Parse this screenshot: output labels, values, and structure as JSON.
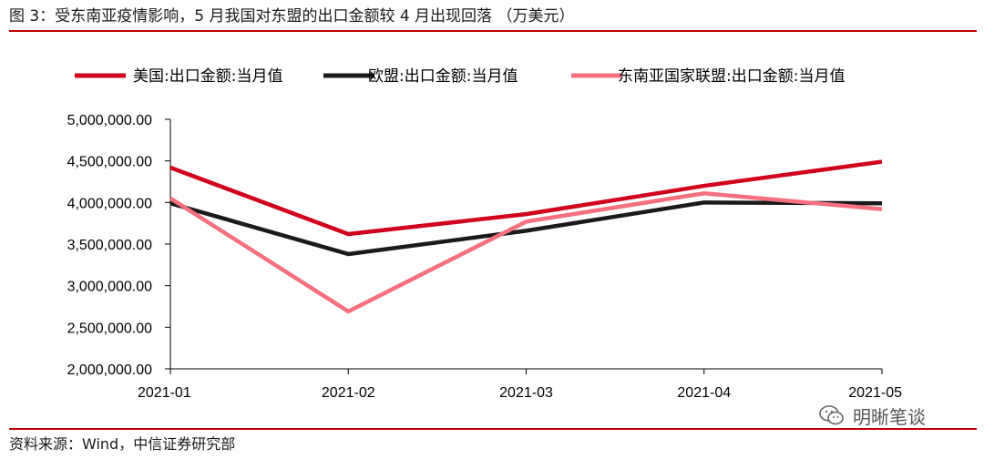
{
  "figure": {
    "title": "图 3：受东南亚疫情影响，5 月我国对东盟的出口金额较 4 月出现回落 （万美元）",
    "source": "资料来源：Wind，中信证券研究部",
    "watermark": "明晰笔谈",
    "accent_color": "#c00000"
  },
  "chart_data": {
    "type": "line",
    "categories": [
      "2021-01",
      "2021-02",
      "2021-03",
      "2021-04",
      "2021-05"
    ],
    "ylim": [
      2000000,
      5000000
    ],
    "yticks": [
      2000000,
      2500000,
      3000000,
      3500000,
      4000000,
      4500000,
      5000000
    ],
    "ytick_labels": [
      "2,000,000.00",
      "2,500,000.00",
      "3,000,000.00",
      "3,500,000.00",
      "4,000,000.00",
      "4,500,000.00",
      "5,000,000.00"
    ],
    "grid": false,
    "legend_position": "top",
    "series": [
      {
        "name": "美国:出口金额:当月值",
        "color": "#d0021b",
        "values": [
          4420000,
          3620000,
          3860000,
          4200000,
          4490000
        ]
      },
      {
        "name": "欧盟:出口金额:当月值",
        "color": "#1a1a1a",
        "values": [
          3990000,
          3380000,
          3660000,
          4000000,
          3990000
        ]
      },
      {
        "name": "东南亚国家联盟:出口金额:当月值",
        "color": "#f4707f",
        "values": [
          4050000,
          2690000,
          3770000,
          4110000,
          3920000
        ]
      }
    ]
  }
}
